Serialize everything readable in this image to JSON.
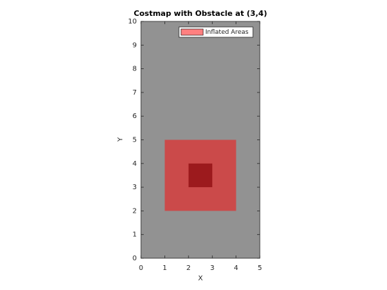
{
  "chart_data": {
    "type": "rect",
    "title": "Costmap with Obstacle at (3,4)",
    "x_label": "X",
    "y_label": "Y",
    "xlim": [
      0,
      5
    ],
    "ylim": [
      0,
      10
    ],
    "xticks": [
      0,
      1,
      2,
      3,
      4,
      5
    ],
    "yticks": [
      0,
      1,
      2,
      3,
      4,
      5,
      6,
      7,
      8,
      9,
      10
    ],
    "background": "#929292",
    "legend": "upper right",
    "series": [
      {
        "name": "Inflated Areas",
        "color": "#cb4a4a",
        "legend_color": "#ff8080",
        "x": [
          1,
          4
        ],
        "y": [
          2,
          5
        ]
      },
      {
        "color": "#9c1a1d",
        "x": [
          2,
          3
        ],
        "y": [
          3,
          4
        ]
      }
    ]
  }
}
